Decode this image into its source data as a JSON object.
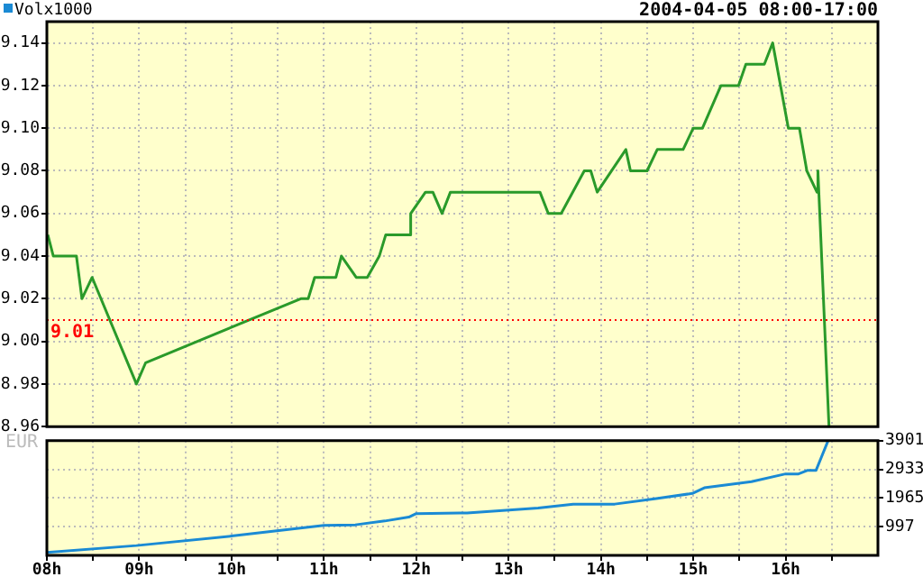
{
  "chart_data": [
    {
      "type": "line",
      "title": "2004-04-05 08:00-17:00",
      "ylabel": "EUR",
      "tick_labels": "y",
      "grid": true,
      "legend": false,
      "marker": "none",
      "line_style": "solid",
      "xlim": [
        8,
        17
      ],
      "xticks": [
        {
          "value": 8,
          "label": null
        },
        {
          "value": 8.5,
          "label": null
        },
        {
          "value": 9,
          "label": null
        },
        {
          "value": 9.5,
          "label": null
        },
        {
          "value": 10,
          "label": null
        },
        {
          "value": 10.5,
          "label": null
        },
        {
          "value": 11,
          "label": null
        },
        {
          "value": 11.5,
          "label": null
        },
        {
          "value": 12,
          "label": null
        },
        {
          "value": 12.5,
          "label": null
        },
        {
          "value": 13,
          "label": null
        },
        {
          "value": 13.5,
          "label": null
        },
        {
          "value": 14,
          "label": null
        },
        {
          "value": 14.5,
          "label": null
        },
        {
          "value": 15,
          "label": null
        },
        {
          "value": 15.5,
          "label": null
        },
        {
          "value": 16,
          "label": null
        },
        {
          "value": 16.5,
          "label": null
        }
      ],
      "ylim": [
        8.96,
        9.15
      ],
      "yticks": [
        8.96,
        8.98,
        {
          "value": 9,
          "label": "9.00"
        },
        9.02,
        9.04,
        9.06,
        9.08,
        {
          "value": 9.1,
          "label": "9.10"
        },
        9.12,
        9.14
      ],
      "ref_lines": [
        {
          "axis": "y",
          "value": 9.01,
          "label": "9.01",
          "color": "#ff0000",
          "line_style": "dotted"
        }
      ],
      "series": [
        {
          "color": "#2a9a2a",
          "x": [
            8.01,
            8.07,
            8.32,
            8.38,
            8.49,
            8.97,
            9.07,
            10.75,
            10.83,
            10.9,
            11.13,
            11.19,
            11.35,
            11.47,
            11.6,
            11.67,
            11.93,
            11.94,
            12.1,
            12.18,
            12.28,
            12.37,
            13.34,
            13.43,
            13.57,
            13.82,
            13.89,
            13.96,
            14.27,
            14.32,
            14.5,
            14.61,
            14.89,
            15.0,
            15.1,
            15.3,
            15.49,
            15.57,
            15.77,
            15.86,
            16.03,
            16.15,
            16.23,
            16.34,
            16.35,
            16.47
          ],
          "values": [
            9.05,
            9.04,
            9.04,
            9.02,
            9.03,
            8.98,
            8.99,
            9.02,
            9.02,
            9.03,
            9.03,
            9.04,
            9.03,
            9.03,
            9.04,
            9.05,
            9.05,
            9.06,
            9.07,
            9.07,
            9.06,
            9.07,
            9.07,
            9.06,
            9.06,
            9.08,
            9.08,
            9.07,
            9.09,
            9.08,
            9.08,
            9.09,
            9.09,
            9.1,
            9.1,
            9.12,
            9.12,
            9.13,
            9.13,
            9.14,
            9.1,
            9.1,
            9.08,
            9.07,
            9.08,
            8.96
          ]
        }
      ]
    },
    {
      "type": "line",
      "grid": true,
      "legend": "top left",
      "marker": "none",
      "line_style": "solid",
      "xlim": [
        8,
        17
      ],
      "xticks": [
        {
          "value": 8,
          "label": "08h"
        },
        {
          "value": 8.5,
          "label": null
        },
        {
          "value": 9,
          "label": "09h"
        },
        {
          "value": 9.5,
          "label": null
        },
        {
          "value": 10,
          "label": "10h"
        },
        {
          "value": 10.5,
          "label": null
        },
        {
          "value": 11,
          "label": "11h"
        },
        {
          "value": 11.5,
          "label": null
        },
        {
          "value": 12,
          "label": "12h"
        },
        {
          "value": 12.5,
          "label": null
        },
        {
          "value": 13,
          "label": "13h"
        },
        {
          "value": 13.5,
          "label": null
        },
        {
          "value": 14,
          "label": "14h"
        },
        {
          "value": 14.5,
          "label": null
        },
        {
          "value": 15,
          "label": "15h"
        },
        {
          "value": 15.5,
          "label": null
        },
        {
          "value": 16,
          "label": "16h"
        },
        {
          "value": 16.5,
          "label": null
        }
      ],
      "ylim": [
        29,
        3901
      ],
      "yticks": [
        997,
        1965,
        2933,
        3901
      ],
      "series": [
        {
          "name": "Volx1000",
          "color": "#1a8ad4",
          "x": [
            8.0,
            8.97,
            10.0,
            11.0,
            11.34,
            11.66,
            11.92,
            12.0,
            12.55,
            13.32,
            13.7,
            14.15,
            14.6,
            14.99,
            15.12,
            15.63,
            16.0,
            16.14,
            16.24,
            16.33,
            16.46
          ],
          "values": [
            130,
            360,
            680,
            1040,
            1060,
            1190,
            1320,
            1440,
            1460,
            1630,
            1760,
            1760,
            1950,
            2120,
            2310,
            2520,
            2780,
            2780,
            2900,
            2900,
            3900
          ]
        }
      ]
    }
  ]
}
